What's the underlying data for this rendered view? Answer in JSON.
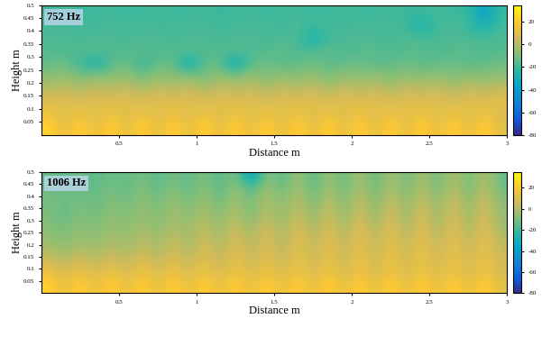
{
  "chart_data": [
    {
      "type": "heatmap",
      "annotation": "752 Hz",
      "x_label": "Distance m",
      "y_label": "Height m",
      "xlim": [
        0,
        3
      ],
      "ylim": [
        0,
        0.5
      ],
      "xticks": [
        0.5,
        1,
        1.5,
        2,
        2.5,
        3
      ],
      "yticks": [
        0.05,
        0.1,
        0.15,
        0.2,
        0.25,
        0.3,
        0.35,
        0.4,
        0.45,
        0.5
      ],
      "color_range": [
        -80,
        35
      ],
      "color_ticks": [
        20,
        0,
        -20,
        -40,
        -60,
        -80
      ],
      "cells": [
        [
          25,
          12,
          25,
          12,
          25,
          12,
          25,
          12,
          25,
          12,
          25,
          12,
          25,
          12,
          25,
          12,
          25,
          12,
          25,
          12,
          25,
          12,
          25,
          12,
          25,
          12,
          25,
          12,
          25,
          12
        ],
        [
          18,
          8,
          18,
          8,
          18,
          8,
          18,
          8,
          18,
          8,
          18,
          8,
          18,
          8,
          18,
          8,
          18,
          8,
          18,
          8,
          18,
          8,
          18,
          8,
          18,
          8,
          18,
          8,
          18,
          8
        ],
        [
          10,
          12,
          8,
          12,
          10,
          12,
          8,
          12,
          10,
          12,
          8,
          12,
          10,
          12,
          8,
          12,
          10,
          12,
          8,
          12,
          10,
          12,
          8,
          12,
          10,
          12,
          8,
          12,
          10,
          12
        ],
        [
          2,
          5,
          0,
          5,
          2,
          6,
          0,
          6,
          2,
          6,
          0,
          6,
          2,
          6,
          0,
          6,
          2,
          6,
          0,
          6,
          2,
          6,
          0,
          6,
          2,
          6,
          0,
          6,
          2,
          5
        ],
        [
          -8,
          -5,
          -10,
          -6,
          -8,
          -5,
          -12,
          -5,
          -9,
          -5,
          -12,
          -5,
          -8,
          -4,
          -10,
          -5,
          -8,
          -4,
          -10,
          -5,
          -8,
          -4,
          -10,
          -5,
          -8,
          -4,
          -10,
          -5,
          -8,
          -6
        ],
        [
          -14,
          -12,
          -20,
          -30,
          -15,
          -12,
          -22,
          -14,
          -12,
          -35,
          -12,
          -14,
          -35,
          -14,
          -12,
          -16,
          -14,
          -12,
          -16,
          -14,
          -12,
          -16,
          -14,
          -12,
          -16,
          -14,
          -12,
          -16,
          -14,
          -12
        ],
        [
          -16,
          -18,
          -16,
          -14,
          -18,
          -16,
          -14,
          -18,
          -16,
          -14,
          -18,
          -16,
          -14,
          -18,
          -16,
          -14,
          -18,
          -16,
          -14,
          -18,
          -16,
          -14,
          -18,
          -16,
          -14,
          -18,
          -16,
          -14,
          -18,
          -16
        ],
        [
          -18,
          -17,
          -19,
          -18,
          -17,
          -19,
          -18,
          -17,
          -19,
          -18,
          -17,
          -19,
          -18,
          -17,
          -19,
          -18,
          -17,
          -30,
          -19,
          -18,
          -17,
          -19,
          -18,
          -17,
          -19,
          -18,
          -17,
          -19,
          -18,
          -17
        ],
        [
          -18,
          -19,
          -18,
          -20,
          -18,
          -19,
          -18,
          -20,
          -18,
          -19,
          -18,
          -20,
          -18,
          -19,
          -18,
          -20,
          -18,
          -19,
          -18,
          -20,
          -18,
          -19,
          -18,
          -20,
          -28,
          -19,
          -18,
          -20,
          -30,
          -19
        ],
        [
          -20,
          -19,
          -21,
          -20,
          -19,
          -21,
          -20,
          -19,
          -21,
          -20,
          -19,
          -21,
          -20,
          -19,
          -21,
          -20,
          -19,
          -21,
          -20,
          -19,
          -21,
          -20,
          -19,
          -21,
          -20,
          -19,
          -21,
          -20,
          -40,
          -20
        ]
      ]
    },
    {
      "type": "heatmap",
      "annotation": "1006 Hz",
      "x_label": "Distance m",
      "y_label": "Height m",
      "xlim": [
        0,
        3
      ],
      "ylim": [
        0,
        0.5
      ],
      "xticks": [
        0.5,
        1,
        1.5,
        2,
        2.5,
        3
      ],
      "yticks": [
        0.05,
        0.1,
        0.15,
        0.2,
        0.25,
        0.3,
        0.35,
        0.4,
        0.45,
        0.5
      ],
      "color_range": [
        -80,
        35
      ],
      "color_ticks": [
        20,
        0,
        -20,
        -40,
        -60,
        -80
      ],
      "cells": [
        [
          25,
          12,
          25,
          12,
          25,
          12,
          25,
          12,
          25,
          12,
          25,
          12,
          25,
          12,
          25,
          12,
          25,
          12,
          25,
          12,
          25,
          12,
          25,
          12,
          25,
          12,
          25,
          12,
          25,
          12
        ],
        [
          18,
          8,
          18,
          8,
          18,
          8,
          18,
          8,
          18,
          8,
          18,
          8,
          18,
          8,
          18,
          8,
          18,
          8,
          18,
          8,
          18,
          8,
          18,
          8,
          18,
          8,
          18,
          8,
          18,
          8
        ],
        [
          8,
          2,
          10,
          2,
          10,
          3,
          12,
          3,
          12,
          4,
          12,
          4,
          14,
          4,
          14,
          4,
          15,
          5,
          15,
          5,
          16,
          5,
          16,
          6,
          16,
          6,
          16,
          6,
          16,
          6
        ],
        [
          0,
          -5,
          2,
          -4,
          4,
          -3,
          6,
          -2,
          8,
          -2,
          10,
          0,
          12,
          0,
          12,
          0,
          14,
          2,
          14,
          2,
          15,
          2,
          15,
          3,
          15,
          3,
          15,
          3,
          15,
          3
        ],
        [
          -5,
          -10,
          -3,
          -8,
          0,
          -6,
          2,
          -5,
          4,
          -4,
          8,
          -4,
          10,
          -2,
          10,
          -2,
          12,
          0,
          12,
          0,
          14,
          0,
          14,
          0,
          14,
          0,
          14,
          0,
          14,
          0
        ],
        [
          -8,
          -12,
          -6,
          -10,
          -4,
          -8,
          -2,
          -8,
          0,
          -6,
          4,
          -6,
          6,
          -6,
          8,
          -4,
          10,
          -4,
          10,
          -4,
          12,
          -4,
          12,
          -4,
          12,
          -4,
          12,
          -4,
          12,
          -4
        ],
        [
          -10,
          -14,
          -8,
          -12,
          -6,
          -10,
          -4,
          -10,
          -2,
          -8,
          0,
          -10,
          2,
          -12,
          4,
          -8,
          6,
          -8,
          8,
          -8,
          8,
          -8,
          10,
          -6,
          10,
          -6,
          10,
          -6,
          10,
          -6
        ],
        [
          -10,
          -12,
          -10,
          -14,
          -8,
          -12,
          -6,
          -12,
          -4,
          -12,
          -2,
          -14,
          0,
          -14,
          2,
          -10,
          4,
          -12,
          4,
          -10,
          6,
          -10,
          6,
          -8,
          6,
          -8,
          8,
          -8,
          8,
          -8
        ],
        [
          -12,
          -14,
          -12,
          -14,
          -10,
          -14,
          -8,
          -14,
          -8,
          -14,
          -6,
          -16,
          -4,
          -16,
          -2,
          -14,
          0,
          -16,
          0,
          -14,
          2,
          -14,
          2,
          -12,
          4,
          -12,
          4,
          -12,
          4,
          -12
        ],
        [
          -14,
          -14,
          -12,
          -16,
          -12,
          -14,
          -10,
          -16,
          -10,
          -16,
          -8,
          -18,
          -6,
          -40,
          -4,
          -18,
          -2,
          -18,
          -2,
          -16,
          0,
          -16,
          0,
          -14,
          0,
          -14,
          2,
          -14,
          2,
          -14
        ]
      ]
    }
  ]
}
